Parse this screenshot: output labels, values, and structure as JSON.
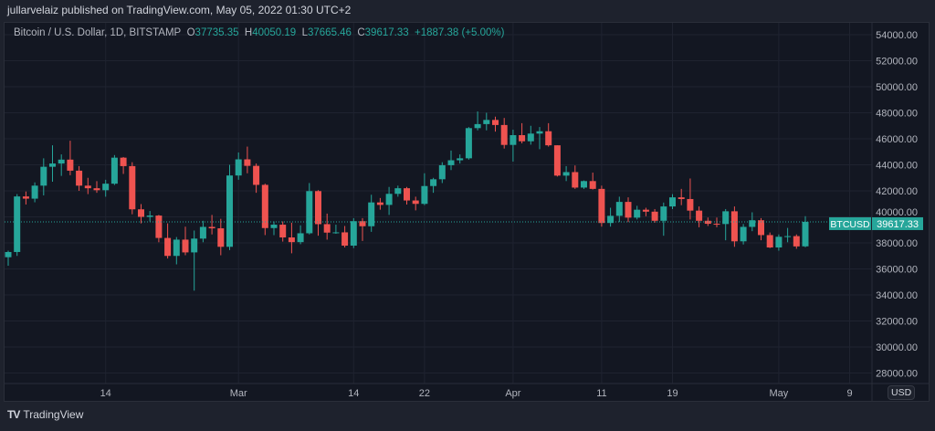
{
  "header": {
    "published": "jullarvelaiz published on TradingView.com, May 05, 2022 01:30 UTC+2"
  },
  "legend": {
    "symbol": "Bitcoin / U.S. Dollar, 1D, BITSTAMP",
    "o_label": "O",
    "o": "37735.35",
    "h_label": "H",
    "h": "40050.19",
    "l_label": "L",
    "l": "37665.46",
    "c_label": "C",
    "c": "39617.33",
    "change": "+1887.38 (+5.00%)"
  },
  "currency_button": "USD",
  "footer": {
    "brand": "TradingView",
    "logo": "TV"
  },
  "colors": {
    "up": "#26a69a",
    "down": "#ef5350",
    "background": "#131722",
    "grid": "#1f2330"
  },
  "chart_data": {
    "type": "candlestick",
    "symbol_label": "BTCUSD",
    "last_price": "39617.33",
    "ylim": [
      27000,
      55000
    ],
    "y_ticks": [
      "28000.00",
      "30000.00",
      "32000.00",
      "34000.00",
      "36000.00",
      "38000.00",
      "40000.00",
      "42000.00",
      "44000.00",
      "46000.00",
      "48000.00",
      "50000.00",
      "52000.00",
      "54000.00"
    ],
    "x_ticks": [
      {
        "label": "14",
        "date": "2022-02-14"
      },
      {
        "label": "Mar",
        "date": "2022-03-01"
      },
      {
        "label": "14",
        "date": "2022-03-14"
      },
      {
        "label": "22",
        "date": "2022-03-22"
      },
      {
        "label": "Apr",
        "date": "2022-04-01"
      },
      {
        "label": "11",
        "date": "2022-04-11"
      },
      {
        "label": "19",
        "date": "2022-04-19"
      },
      {
        "label": "May",
        "date": "2022-05-01"
      },
      {
        "label": "9",
        "date": "2022-05-09"
      }
    ],
    "start_date": "2022-02-03",
    "ohlc": [
      [
        36900,
        37400,
        36250,
        37300
      ],
      [
        37300,
        41750,
        37000,
        41570
      ],
      [
        41570,
        41950,
        40950,
        41400
      ],
      [
        41400,
        42650,
        41120,
        42400
      ],
      [
        42400,
        44500,
        41650,
        43850
      ],
      [
        43850,
        45500,
        42700,
        44100
      ],
      [
        44100,
        44800,
        43150,
        44400
      ],
      [
        44400,
        45850,
        43200,
        43550
      ],
      [
        43550,
        43900,
        42000,
        42400
      ],
      [
        42400,
        43000,
        41750,
        42200
      ],
      [
        42200,
        42750,
        41850,
        42050
      ],
      [
        42050,
        42850,
        41550,
        42550
      ],
      [
        42550,
        44750,
        42450,
        44550
      ],
      [
        44550,
        44600,
        43300,
        43900
      ],
      [
        43900,
        44200,
        40200,
        40580
      ],
      [
        40580,
        40980,
        39500,
        40000
      ],
      [
        40000,
        40450,
        39650,
        40100
      ],
      [
        40100,
        40150,
        38050,
        38380
      ],
      [
        38380,
        39500,
        36800,
        37000
      ],
      [
        37000,
        38450,
        36350,
        38250
      ],
      [
        38250,
        39250,
        37050,
        37270
      ],
      [
        37270,
        38950,
        34330,
        38330
      ],
      [
        38330,
        39700,
        38050,
        39230
      ],
      [
        39230,
        40150,
        38650,
        39120
      ],
      [
        39120,
        39850,
        37050,
        37700
      ],
      [
        37700,
        44000,
        37450,
        43180
      ],
      [
        43180,
        44950,
        42850,
        44420
      ],
      [
        44420,
        45400,
        43350,
        43920
      ],
      [
        43920,
        44100,
        41850,
        42460
      ],
      [
        42460,
        42550,
        38600,
        39140
      ],
      [
        39140,
        39650,
        38600,
        39400
      ],
      [
        39400,
        39650,
        38100,
        38420
      ],
      [
        38420,
        39550,
        37200,
        38060
      ],
      [
        38060,
        39350,
        37900,
        38740
      ],
      [
        38740,
        42600,
        38650,
        41980
      ],
      [
        41980,
        42050,
        38550,
        39440
      ],
      [
        39440,
        40250,
        38250,
        38790
      ],
      [
        38790,
        39400,
        38700,
        38810
      ],
      [
        38810,
        39300,
        37650,
        37790
      ],
      [
        37790,
        39900,
        37600,
        39670
      ],
      [
        39670,
        39900,
        38150,
        39280
      ],
      [
        39280,
        41700,
        38850,
        41110
      ],
      [
        41110,
        41450,
        40550,
        40920
      ],
      [
        40920,
        42300,
        40150,
        41770
      ],
      [
        41770,
        42400,
        41550,
        42200
      ],
      [
        42200,
        42300,
        40950,
        41260
      ],
      [
        41260,
        41550,
        40500,
        41000
      ],
      [
        41000,
        43350,
        40900,
        42370
      ],
      [
        42370,
        43000,
        41850,
        42890
      ],
      [
        42890,
        44200,
        42600,
        43970
      ],
      [
        43970,
        45100,
        43600,
        44350
      ],
      [
        44350,
        44800,
        44100,
        44500
      ],
      [
        44500,
        46900,
        44400,
        46820
      ],
      [
        46820,
        48100,
        46650,
        47130
      ],
      [
        47130,
        48000,
        46650,
        47450
      ],
      [
        47450,
        47700,
        46550,
        47060
      ],
      [
        47060,
        47600,
        45250,
        45530
      ],
      [
        45530,
        46700,
        44250,
        46280
      ],
      [
        46280,
        47200,
        45650,
        45810
      ],
      [
        45810,
        47000,
        45550,
        46400
      ],
      [
        46400,
        46900,
        45200,
        46580
      ],
      [
        46580,
        47200,
        45400,
        45500
      ],
      [
        45500,
        45500,
        43100,
        43170
      ],
      [
        43170,
        43900,
        42750,
        43440
      ],
      [
        43440,
        43950,
        42150,
        42250
      ],
      [
        42250,
        42800,
        42150,
        42750
      ],
      [
        42750,
        43400,
        42100,
        42150
      ],
      [
        42150,
        42400,
        39250,
        39530
      ],
      [
        39530,
        40700,
        39250,
        40080
      ],
      [
        40080,
        41550,
        39600,
        41150
      ],
      [
        41150,
        41500,
        39600,
        39940
      ],
      [
        39940,
        40850,
        39800,
        40550
      ],
      [
        40550,
        40700,
        40050,
        40400
      ],
      [
        40400,
        40600,
        39550,
        39700
      ],
      [
        39700,
        41100,
        38550,
        40800
      ],
      [
        40800,
        41750,
        40600,
        41500
      ],
      [
        41500,
        42150,
        40900,
        41370
      ],
      [
        41370,
        42950,
        39800,
        40480
      ],
      [
        40480,
        40800,
        39200,
        39700
      ],
      [
        39700,
        39950,
        39300,
        39470
      ],
      [
        39470,
        39950,
        39200,
        39450
      ],
      [
        39450,
        40600,
        38200,
        40430
      ],
      [
        40430,
        40800,
        37700,
        38120
      ],
      [
        38120,
        39450,
        37880,
        39230
      ],
      [
        39230,
        40350,
        38900,
        39740
      ],
      [
        39740,
        39900,
        38200,
        38600
      ],
      [
        38600,
        38800,
        37600,
        37650
      ],
      [
        37650,
        38650,
        37400,
        38470
      ],
      [
        38470,
        39150,
        38050,
        38520
      ],
      [
        38520,
        38650,
        37550,
        37730
      ],
      [
        37735.35,
        40050.19,
        37665.46,
        39617.33
      ]
    ]
  }
}
